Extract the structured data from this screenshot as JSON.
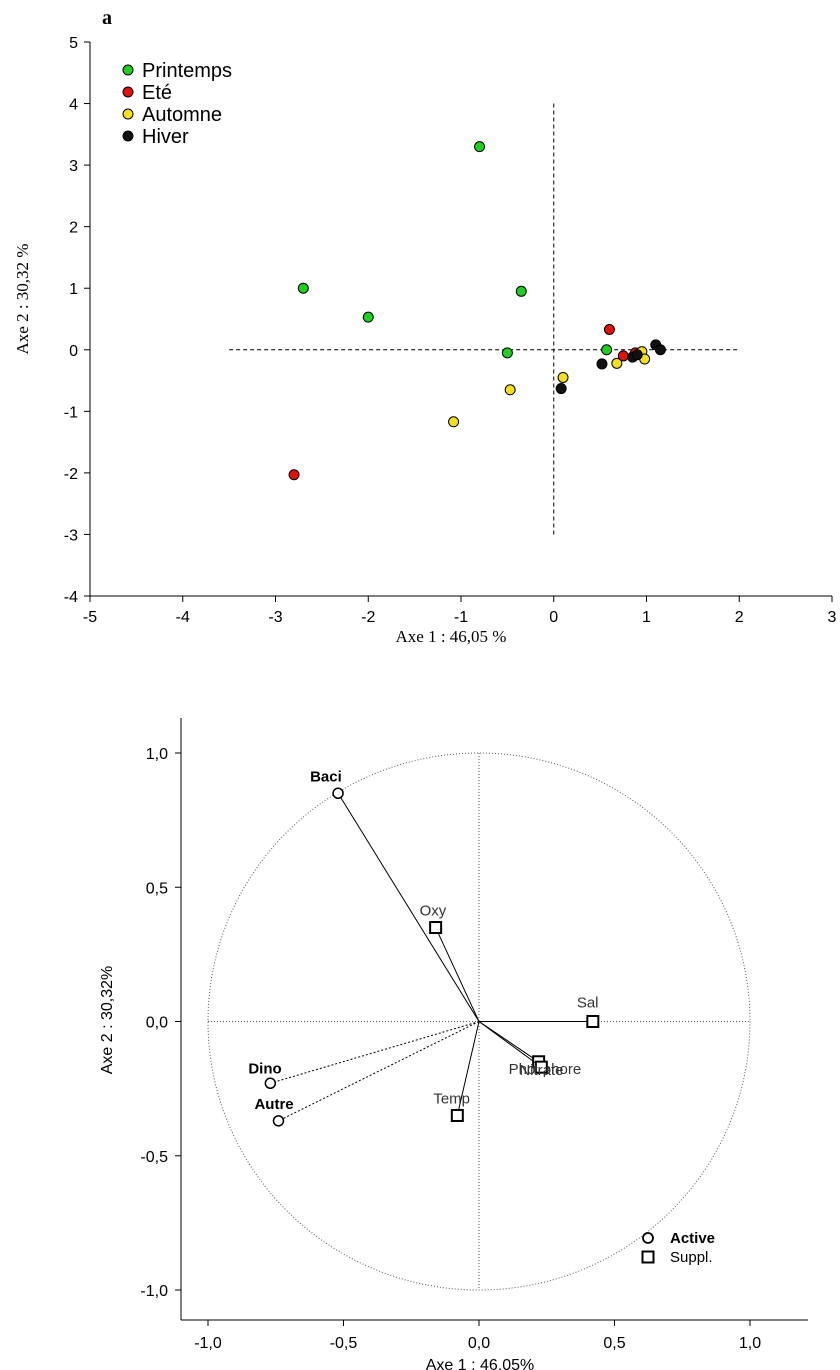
{
  "chart_data": [
    {
      "type": "scatter",
      "panel_label": "a",
      "xlabel": "Axe 1 : 46,05 %",
      "ylabel": "Axe 2 : 30,32 %",
      "xlim": [
        -5,
        3
      ],
      "ylim": [
        -4,
        5
      ],
      "xticks": [
        "-5",
        "-4",
        "-3",
        "-2",
        "-1",
        "0",
        "1",
        "2",
        "3"
      ],
      "yticks": [
        "-4",
        "-3",
        "-2",
        "-1",
        "0",
        "1",
        "2",
        "3",
        "4",
        "5"
      ],
      "legend_position": "top-left",
      "series": [
        {
          "name": "Printemps",
          "color": "#22cc22",
          "points": [
            [
              -0.8,
              3.3
            ],
            [
              -2.7,
              1.0
            ],
            [
              -2.0,
              0.53
            ],
            [
              -0.35,
              0.95
            ],
            [
              -0.5,
              -0.05
            ],
            [
              0.57,
              0.0
            ]
          ]
        },
        {
          "name": "Eté",
          "color": "#e01010",
          "points": [
            [
              -2.8,
              -2.03
            ],
            [
              0.6,
              0.33
            ],
            [
              0.75,
              -0.1
            ],
            [
              0.88,
              -0.05
            ]
          ]
        },
        {
          "name": "Automne",
          "color": "#f2e020",
          "points": [
            [
              -1.08,
              -1.17
            ],
            [
              -0.47,
              -0.65
            ],
            [
              0.1,
              -0.45
            ],
            [
              0.68,
              -0.22
            ],
            [
              0.95,
              -0.03
            ],
            [
              0.98,
              -0.15
            ]
          ]
        },
        {
          "name": "Hiver",
          "color": "#111111",
          "points": [
            [
              0.08,
              -0.63
            ],
            [
              0.52,
              -0.23
            ],
            [
              0.85,
              -0.12
            ],
            [
              0.9,
              -0.08
            ],
            [
              1.1,
              0.08
            ],
            [
              1.15,
              0.0
            ]
          ]
        }
      ],
      "reference_lines": {
        "horizontal_x": [
          -3.5,
          2
        ],
        "vertical_y": [
          -3,
          4
        ]
      }
    },
    {
      "type": "scatter",
      "xlabel": "Axe 1  : 46,05%",
      "ylabel": "Axe 2  : 30,32%",
      "xlim": [
        -1.0,
        1.0
      ],
      "ylim": [
        -1.0,
        1.0
      ],
      "xticks": [
        "-1,0",
        "-0,5",
        "0,0",
        "0,5",
        "1,0"
      ],
      "yticks": [
        "-1,0",
        "-0,5",
        "0,0",
        "0,5",
        "1,0"
      ],
      "legend_position": "bottom-right",
      "series": [
        {
          "name": "Active",
          "marker": "circle",
          "points": [
            {
              "label": "Baci",
              "x": -0.52,
              "y": 0.85
            },
            {
              "label": "Dino",
              "x": -0.77,
              "y": -0.23
            },
            {
              "label": "Autre",
              "x": -0.74,
              "y": -0.37
            }
          ]
        },
        {
          "name": "Suppl.",
          "marker": "square",
          "points": [
            {
              "label": "Oxy",
              "x": -0.16,
              "y": 0.35
            },
            {
              "label": "Sal",
              "x": 0.42,
              "y": 0.0
            },
            {
              "label": "Phosphore",
              "x": 0.22,
              "y": -0.15
            },
            {
              "label": "Nitrate",
              "x": 0.23,
              "y": -0.17
            },
            {
              "label": "Temp",
              "x": -0.08,
              "y": -0.35
            }
          ]
        }
      ]
    }
  ]
}
